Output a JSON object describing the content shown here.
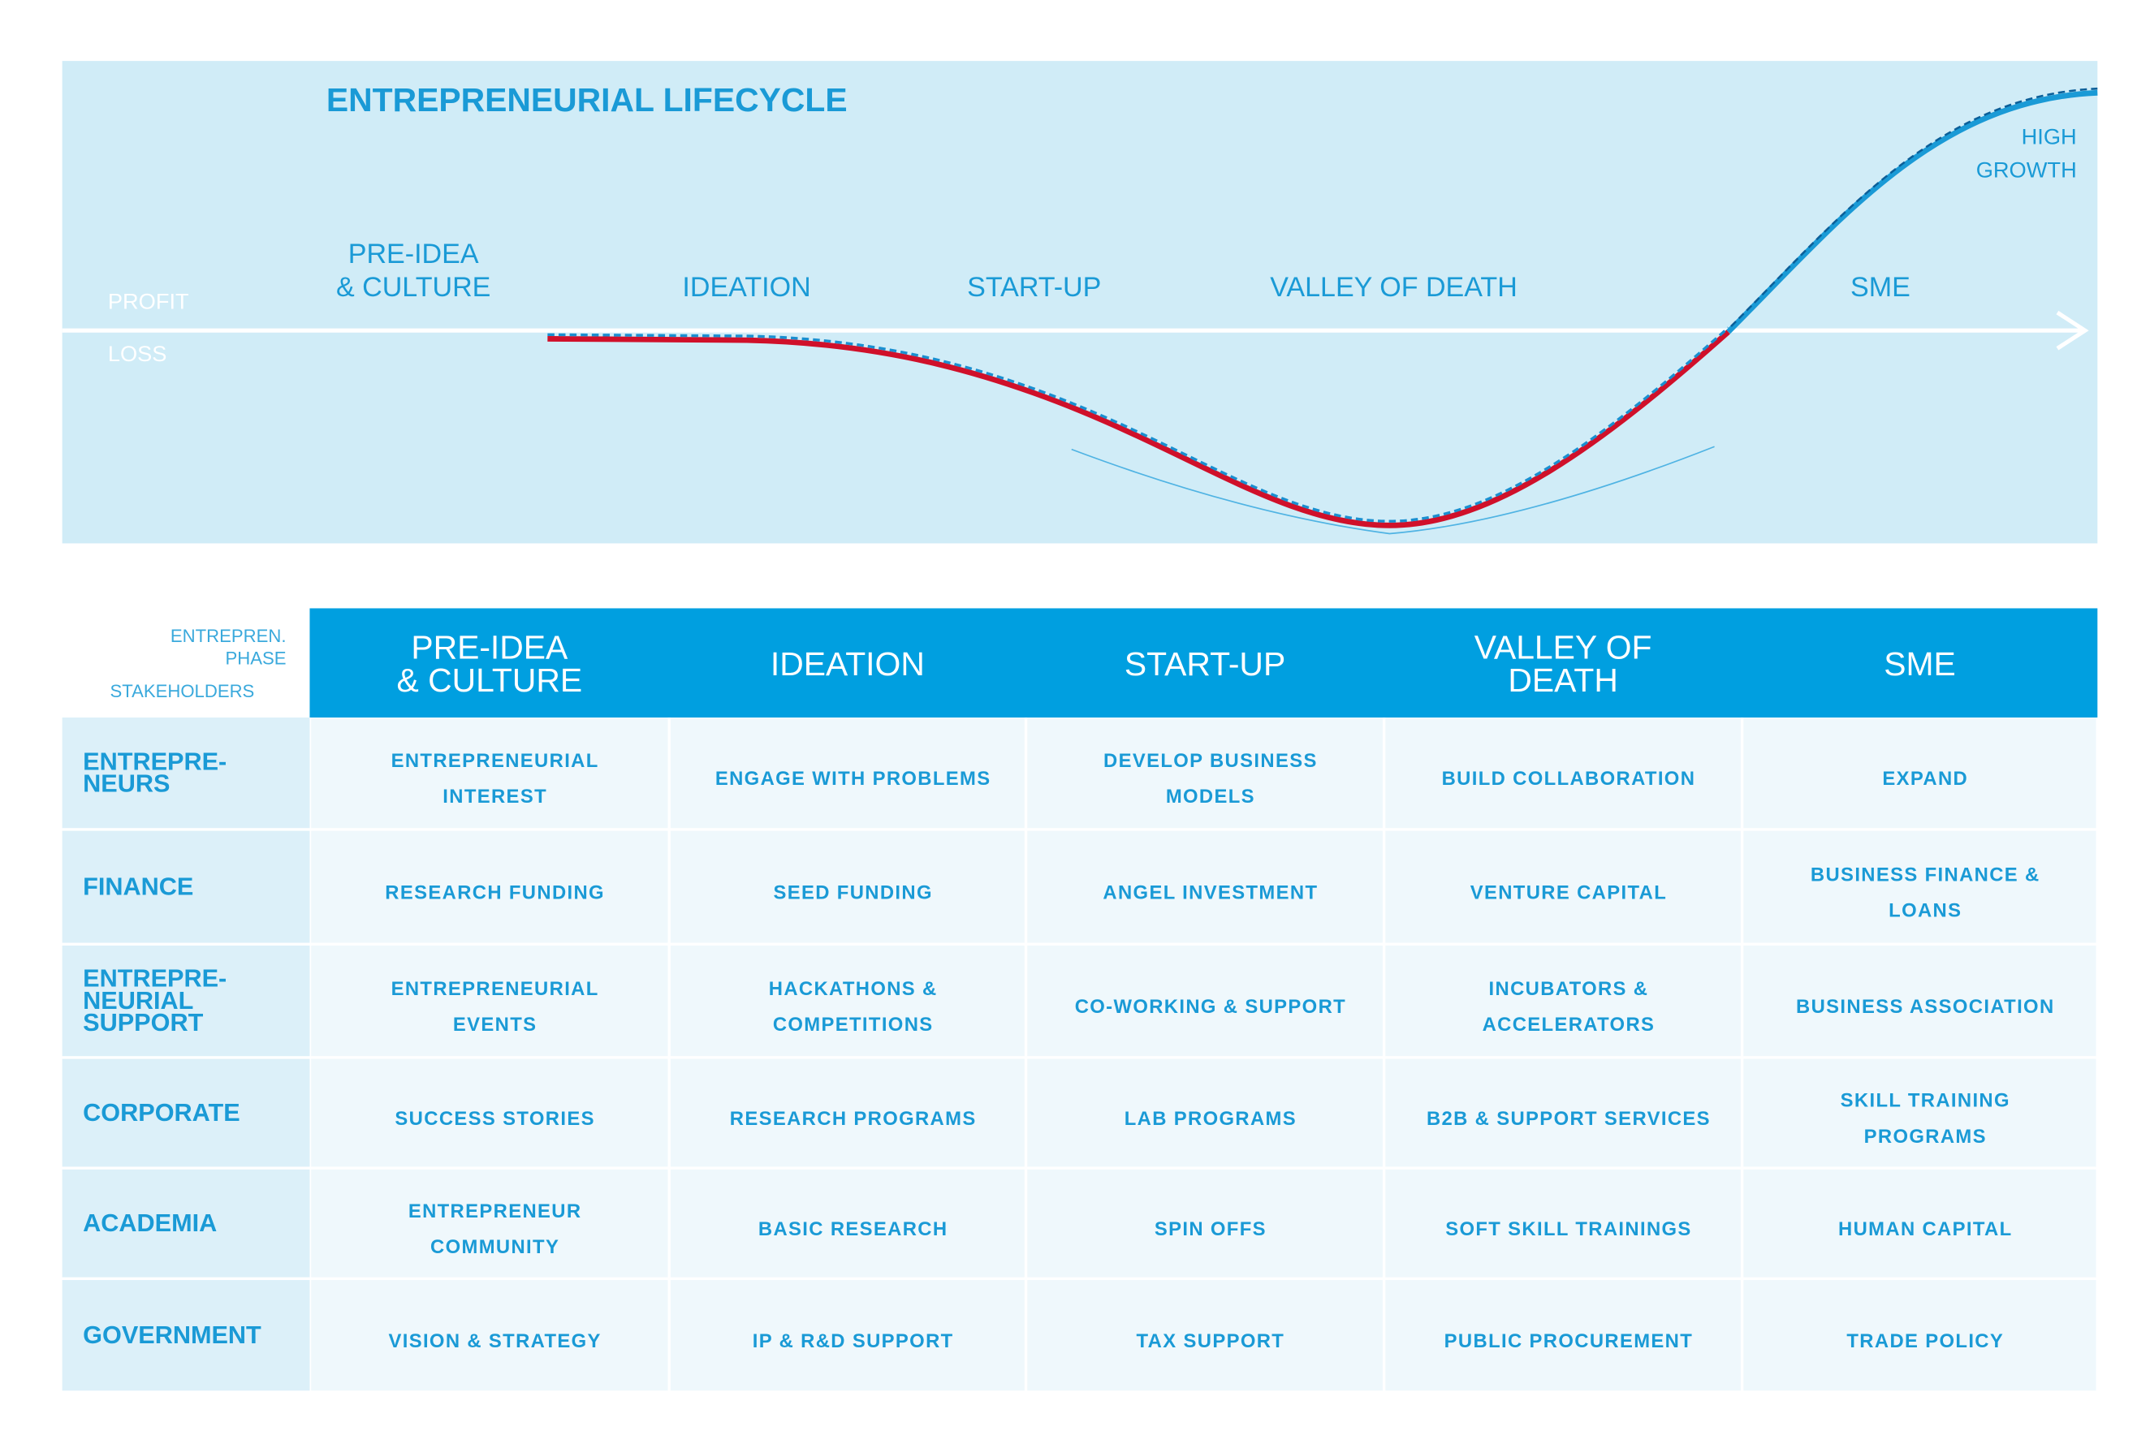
{
  "lifecycle": {
    "title": "ENTREPRENEURIAL LIFECYCLE",
    "profit_label": "PROFIT",
    "loss_label": "LOSS",
    "stages": [
      [
        "PRE-IDEA",
        "& CULTURE"
      ],
      [
        "IDEATION"
      ],
      [
        "START-UP"
      ],
      [
        "VALLEY OF DEATH"
      ],
      [
        "SME"
      ]
    ],
    "end_label": [
      "HIGH",
      "GROWTH"
    ]
  },
  "table": {
    "corner_phase": [
      "ENTREPREN.",
      "PHASE"
    ],
    "corner_stakeholders": "STAKEHOLDERS",
    "header": [
      [
        "PRE-IDEA",
        "& CULTURE"
      ],
      [
        "IDEATION"
      ],
      [
        "START-UP"
      ],
      [
        "VALLEY OF",
        "DEATH"
      ],
      [
        "SME"
      ]
    ],
    "rows": [
      {
        "label": [
          "ENTREPRE-",
          "NEURS"
        ],
        "cells": [
          [
            "ENTREPRENEURIAL",
            "INTEREST"
          ],
          [
            "ENGAGE WITH PROBLEMS"
          ],
          [
            "DEVELOP BUSINESS",
            "MODELS"
          ],
          [
            "BUILD COLLABORATION"
          ],
          [
            "EXPAND"
          ]
        ]
      },
      {
        "label": [
          "FINANCE"
        ],
        "cells": [
          [
            "RESEARCH FUNDING"
          ],
          [
            "SEED FUNDING"
          ],
          [
            "ANGEL INVESTMENT"
          ],
          [
            "VENTURE CAPITAL"
          ],
          [
            "BUSINESS FINANCE &",
            "LOANS"
          ]
        ]
      },
      {
        "label": [
          "ENTREPRE-",
          "NEURIAL",
          "SUPPORT"
        ],
        "cells": [
          [
            "ENTREPRENEURIAL",
            "EVENTS"
          ],
          [
            "HACKATHONS &",
            "COMPETITIONS"
          ],
          [
            "CO-WORKING & SUPPORT"
          ],
          [
            "INCUBATORS &",
            "ACCELERATORS"
          ],
          [
            "BUSINESS ASSOCIATION"
          ]
        ]
      },
      {
        "label": [
          "CORPORATE"
        ],
        "cells": [
          [
            "SUCCESS STORIES"
          ],
          [
            "RESEARCH PROGRAMS"
          ],
          [
            "LAB PROGRAMS"
          ],
          [
            "B2B & SUPPORT SERVICES"
          ],
          [
            "SKILL TRAINING",
            "PROGRAMS"
          ]
        ]
      },
      {
        "label": [
          "ACADEMIA"
        ],
        "cells": [
          [
            "ENTREPRENEUR",
            "COMMUNITY"
          ],
          [
            "BASIC RESEARCH"
          ],
          [
            "SPIN OFFS"
          ],
          [
            "SOFT SKILL TRAININGS"
          ],
          [
            "HUMAN CAPITAL"
          ]
        ]
      },
      {
        "label": [
          "GOVERNMENT"
        ],
        "cells": [
          [
            "VISION & STRATEGY"
          ],
          [
            "IP & R&D SUPPORT"
          ],
          [
            "TAX SUPPORT"
          ],
          [
            "PUBLIC PROCUREMENT"
          ],
          [
            "TRADE POLICY"
          ]
        ]
      }
    ]
  }
}
